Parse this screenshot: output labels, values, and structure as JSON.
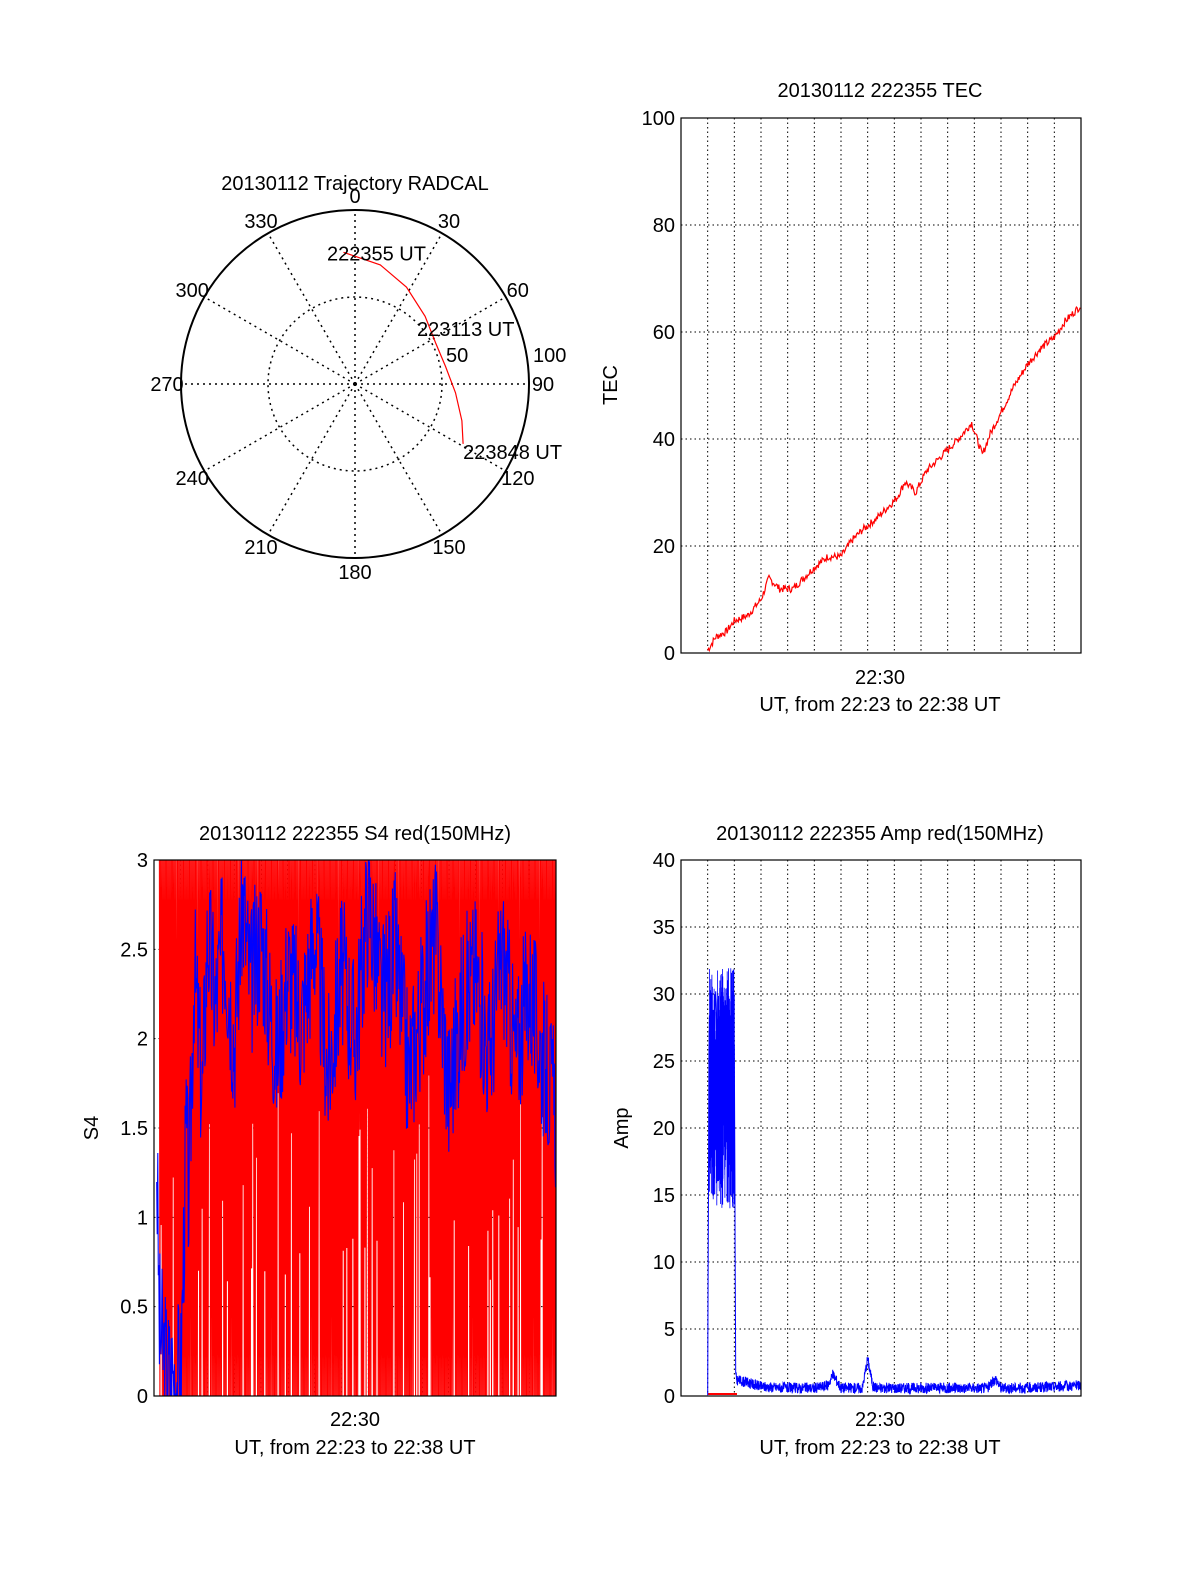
{
  "chart_data": [
    {
      "type": "polar",
      "title": "20130112 Trajectory RADCAL",
      "azimuth_labels": [
        "0",
        "30",
        "60",
        "90",
        "120",
        "150",
        "180",
        "210",
        "240",
        "270",
        "300",
        "330"
      ],
      "radial_labels": [
        "50",
        "100"
      ],
      "rlim": [
        0,
        100
      ],
      "trajectory": {
        "color": "#ff0000",
        "points": [
          {
            "az": -5,
            "r": 76
          },
          {
            "az": 12,
            "r": 70
          },
          {
            "az": 28,
            "r": 63
          },
          {
            "az": 46,
            "r": 56
          },
          {
            "az": 63,
            "r": 52
          },
          {
            "az": 79,
            "r": 53
          },
          {
            "az": 95,
            "r": 58
          },
          {
            "az": 109,
            "r": 65
          },
          {
            "az": 119,
            "r": 71
          }
        ]
      },
      "annotations": [
        {
          "text": "222355 UT",
          "az": -5,
          "r": 76
        },
        {
          "text": "223113 UT",
          "az": 65,
          "r": 52
        },
        {
          "text": "223848 UT",
          "az": 119,
          "r": 71
        }
      ]
    },
    {
      "type": "line",
      "title": "20130112 222355 TEC",
      "xlabel_time": "22:30",
      "xlabel": "UT, from 22:23 to 22:38 UT",
      "ylabel": "TEC",
      "xlim_min": [
        0,
        15
      ],
      "ylim": [
        0,
        100
      ],
      "yticks": [
        0,
        20,
        40,
        60,
        80,
        100
      ],
      "yticks_labels": [
        "0",
        "20",
        "40",
        "60",
        "80",
        "100"
      ],
      "series": [
        {
          "color": "#ff0000",
          "x": [
            1.0,
            1.3,
            1.7,
            2.0,
            2.5,
            3.0,
            3.3,
            3.7,
            4.2,
            4.6,
            5.0,
            5.5,
            6.0,
            6.4,
            6.8,
            7.3,
            7.7,
            8.1,
            8.4,
            8.8,
            9.2,
            9.6,
            10.0,
            10.4,
            10.9,
            11.3,
            11.6,
            12.0,
            12.5,
            13.0,
            13.5,
            14.0,
            14.4,
            14.8,
            15.0
          ],
          "y": [
            0.5,
            3,
            4,
            6,
            7,
            10,
            14,
            12,
            12,
            14,
            16,
            18,
            18,
            21,
            23,
            25,
            27,
            29,
            32,
            30,
            34,
            36,
            38,
            40,
            43,
            37,
            41,
            45,
            50,
            54,
            57,
            59,
            62,
            64,
            65
          ]
        }
      ]
    },
    {
      "type": "line",
      "title": "20130112 222355 S4 red(150MHz)",
      "xlabel_time": "22:30",
      "xlabel": "UT, from 22:23 to 22:38 UT",
      "ylabel": "S4",
      "ylim": [
        0,
        3
      ],
      "yticks_labels": [
        "0",
        "0.5",
        "1",
        "1.5",
        "2",
        "2.5",
        "3"
      ],
      "series": [
        {
          "color": "#ff0000",
          "description_values": "oscillates 0 to 3 across 22:23-22:38"
        },
        {
          "color": "#0000ff",
          "x": [
            0.1,
            0.2,
            0.5,
            1.0,
            1.2,
            1.3,
            1.5,
            1.8,
            2.0,
            2.3,
            2.6,
            3.0,
            3.3,
            3.6,
            4.0,
            4.3,
            4.6,
            5.0,
            5.5,
            6.0,
            6.5,
            7.0,
            7.5,
            8.0,
            8.5,
            9.0,
            9.5,
            10.0,
            10.5,
            11.0,
            11.5,
            12.0,
            12.5,
            13.0,
            13.5,
            14.0,
            14.5,
            15.0
          ],
          "y": [
            1.35,
            0.4,
            0.12,
            0.12,
            1.5,
            1.1,
            2.4,
            1.7,
            2.6,
            2.2,
            2.6,
            2.0,
            2.8,
            2.3,
            2.6,
            2.2,
            1.9,
            2.4,
            2.1,
            2.6,
            1.8,
            2.4,
            2.0,
            2.8,
            2.2,
            2.5,
            1.8,
            2.2,
            2.6,
            1.7,
            2.2,
            2.4,
            1.9,
            2.5,
            1.9,
            2.3,
            1.9,
            1.6
          ]
        }
      ]
    },
    {
      "type": "line",
      "title": "20130112 222355 Amp red(150MHz)",
      "xlabel_time": "22:30",
      "xlabel": "UT, from 22:23 to 22:38 UT",
      "ylabel": "Amp",
      "ylim": [
        0,
        40
      ],
      "yticks": [
        0,
        5,
        10,
        15,
        20,
        25,
        30,
        35,
        40
      ],
      "yticks_labels": [
        "0",
        "5",
        "10",
        "15",
        "20",
        "25",
        "30",
        "35",
        "40"
      ],
      "series": [
        {
          "color": "#0000ff",
          "x": [
            1.0,
            1.05,
            1.1,
            1.3,
            1.5,
            1.7,
            1.9,
            2.0,
            2.05,
            2.1,
            2.5,
            3.0,
            4.0,
            5.0,
            5.5,
            5.7,
            6.0,
            6.8,
            7.0,
            7.2,
            7.4,
            8.0,
            9.0,
            10.0,
            11.0,
            11.5,
            11.8,
            12.0,
            13.0,
            14.0,
            15.0
          ],
          "y": [
            0,
            26,
            18,
            30,
            22,
            28,
            24,
            26,
            1.5,
            1.2,
            1.0,
            0.7,
            0.6,
            0.6,
            0.8,
            1.6,
            0.6,
            0.6,
            2.8,
            0.7,
            0.6,
            0.6,
            0.6,
            0.6,
            0.6,
            0.6,
            1.3,
            0.6,
            0.6,
            0.7,
            0.8
          ]
        },
        {
          "color": "#ff0000",
          "x": [
            1.0,
            2.1
          ],
          "y": [
            0.15,
            0.15
          ]
        }
      ]
    }
  ]
}
